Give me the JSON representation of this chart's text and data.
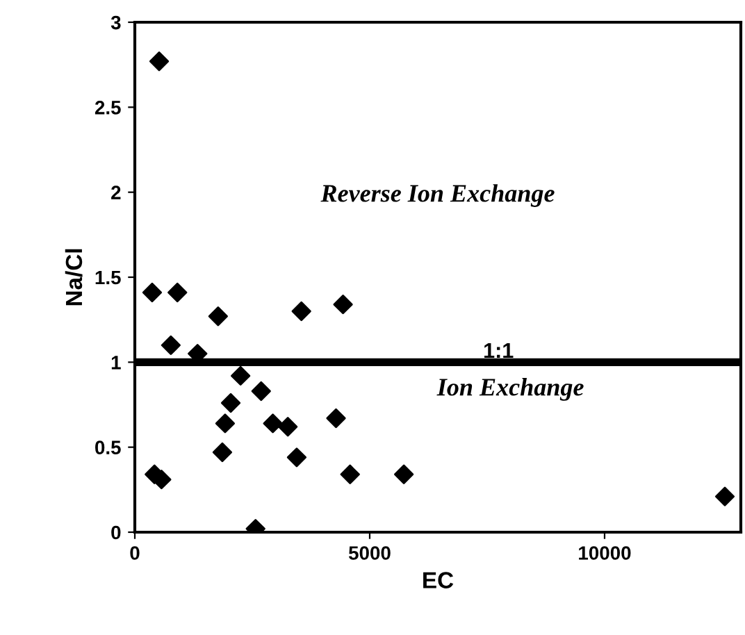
{
  "chart_data": {
    "type": "scatter",
    "xlabel": "EC",
    "ylabel": "Na/Cl",
    "x": [
      518,
      369,
      906,
      767,
      1335,
      1773,
      3546,
      4432,
      2251,
      2689,
      2042,
      1922,
      2938,
      3257,
      4283,
      1863,
      3446,
      4582,
      5727,
      418,
      568,
      2570,
      12560
    ],
    "values": [
      2.77,
      1.41,
      1.41,
      1.1,
      1.05,
      1.27,
      1.3,
      1.34,
      0.92,
      0.83,
      0.76,
      0.64,
      0.64,
      0.62,
      0.67,
      0.47,
      0.44,
      0.34,
      0.34,
      0.34,
      0.31,
      0.02,
      0.21
    ],
    "color": "#000000",
    "marker": "diamond",
    "xlim": [
      0,
      12900
    ],
    "xticks": [
      0,
      5000,
      10000
    ],
    "ylim": [
      0,
      3
    ],
    "yticks": [
      0,
      0.5,
      1,
      1.5,
      2,
      2.5,
      3
    ],
    "ref_lines": [
      {
        "axis": "y",
        "value": 1,
        "label": "1:1",
        "color": "#000000",
        "line_style": "solid"
      }
    ],
    "annotations": [
      "Reverse Ion Exchange",
      "Ion Exchange"
    ],
    "grid": false,
    "legend": false
  }
}
